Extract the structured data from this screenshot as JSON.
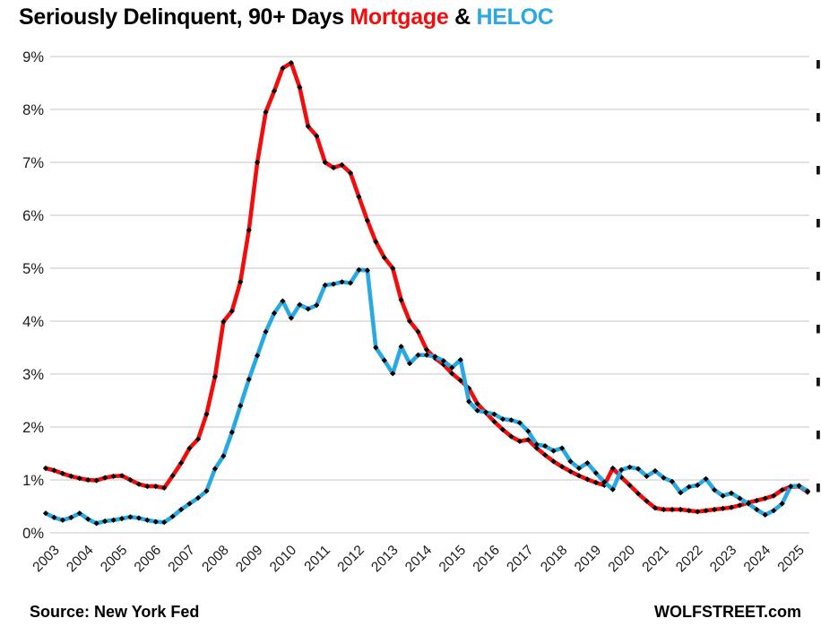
{
  "title": {
    "prefix": "Seriously Delinquent, 90+ Days ",
    "mortgage_word": "Mortgage",
    "amp": " & ",
    "heloc_word": "HELOC"
  },
  "footer": {
    "source": "Source: New York Fed",
    "brand": "WOLFSTREET.com"
  },
  "colors": {
    "mortgage": "#f20d0d",
    "heloc": "#29a8e1",
    "marker": "#000000",
    "gridline": "#d9d9d9",
    "axis_text": "#1a1a1a",
    "clipped_fragment": "#141414"
  },
  "chart_data": {
    "type": "line",
    "frequency": "quarterly",
    "start": "2003 Q1",
    "end": "2025 Q3",
    "grid": "horizontal",
    "legend_position": "in-title",
    "ylim": [
      0,
      9
    ],
    "y_ticks": [
      "0%",
      "1%",
      "2%",
      "3%",
      "4%",
      "5%",
      "6%",
      "7%",
      "8%",
      "9%"
    ],
    "x_ticks": [
      2003,
      2004,
      2005,
      2006,
      2007,
      2008,
      2009,
      2010,
      2011,
      2012,
      2013,
      2014,
      2015,
      2016,
      2017,
      2018,
      2019,
      2020,
      2021,
      2022,
      2023,
      2024,
      2025
    ],
    "series": [
      {
        "name": "Mortgage",
        "color": "#f20d0d",
        "marker": "diamond",
        "values": [
          1.22,
          1.18,
          1.12,
          1.07,
          1.03,
          1.0,
          0.99,
          1.04,
          1.07,
          1.08,
          1.0,
          0.92,
          0.88,
          0.88,
          0.85,
          1.08,
          1.32,
          1.6,
          1.77,
          2.24,
          2.95,
          3.99,
          4.19,
          4.74,
          5.72,
          7.0,
          7.95,
          8.35,
          8.78,
          8.88,
          8.42,
          7.68,
          7.5,
          7.0,
          6.9,
          6.95,
          6.8,
          6.35,
          5.9,
          5.5,
          5.2,
          5.0,
          4.4,
          4.0,
          3.8,
          3.46,
          3.3,
          3.18,
          3.01,
          2.88,
          2.73,
          2.44,
          2.27,
          2.1,
          1.95,
          1.82,
          1.73,
          1.76,
          1.6,
          1.47,
          1.35,
          1.25,
          1.16,
          1.08,
          1.01,
          0.95,
          0.9,
          1.22,
          1.05,
          0.9,
          0.74,
          0.6,
          0.47,
          0.44,
          0.44,
          0.44,
          0.42,
          0.4,
          0.42,
          0.44,
          0.46,
          0.48,
          0.52,
          0.57,
          0.61,
          0.65,
          0.7,
          0.81,
          0.87,
          0.88,
          0.77
        ]
      },
      {
        "name": "HELOC",
        "color": "#29a8e1",
        "marker": "diamond",
        "values": [
          0.37,
          0.29,
          0.24,
          0.29,
          0.37,
          0.26,
          0.18,
          0.22,
          0.24,
          0.27,
          0.3,
          0.28,
          0.24,
          0.21,
          0.2,
          0.31,
          0.44,
          0.55,
          0.66,
          0.79,
          1.21,
          1.45,
          1.9,
          2.4,
          2.9,
          3.35,
          3.8,
          4.15,
          4.38,
          4.06,
          4.31,
          4.23,
          4.3,
          4.68,
          4.7,
          4.74,
          4.72,
          4.97,
          4.96,
          3.5,
          3.26,
          3.01,
          3.52,
          3.2,
          3.36,
          3.36,
          3.33,
          3.25,
          3.12,
          3.27,
          2.48,
          2.31,
          2.28,
          2.24,
          2.15,
          2.13,
          2.08,
          1.92,
          1.67,
          1.64,
          1.55,
          1.6,
          1.35,
          1.22,
          1.32,
          1.13,
          0.96,
          0.82,
          1.19,
          1.24,
          1.21,
          1.07,
          1.17,
          1.04,
          0.97,
          0.76,
          0.87,
          0.9,
          1.02,
          0.81,
          0.7,
          0.75,
          0.65,
          0.55,
          0.44,
          0.34,
          0.42,
          0.55,
          0.88,
          0.89,
          0.79
        ]
      }
    ]
  }
}
